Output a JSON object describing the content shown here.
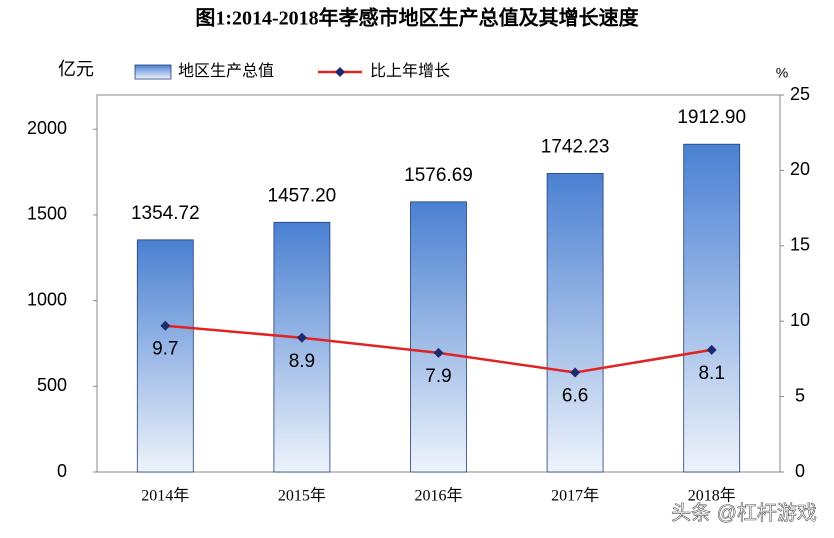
{
  "chart_data": {
    "type": "bar",
    "title": "图1:2014-2018年孝感市地区生产总值及其增长速度",
    "y_label": "亿元",
    "y2_label": "%",
    "categories": [
      "2014年",
      "2015年",
      "2016年",
      "2017年",
      "2018年"
    ],
    "series": [
      {
        "name": "地区生产总值",
        "type": "bar",
        "color": "#4a80d2",
        "values": [
          1354.72,
          1457.2,
          1576.69,
          1742.23,
          1912.9
        ],
        "value_labels": [
          "1354.72",
          "1457.20",
          "1576.69",
          "1742.23",
          "1912.90"
        ]
      },
      {
        "name": "比上年增长",
        "type": "line",
        "axis": "y2",
        "color": "#e02424",
        "marker_color": "#1f2a6e",
        "values": [
          9.7,
          8.9,
          7.9,
          6.6,
          8.1
        ]
      }
    ],
    "ylim": [
      0,
      2200
    ],
    "yticks": [
      0,
      500,
      1000,
      1500,
      2000
    ],
    "y2lim": [
      0,
      25
    ],
    "y2ticks": [
      0,
      5,
      10,
      15,
      20,
      25
    ],
    "legend": "top",
    "watermark": "头条 @杠杆游戏"
  }
}
